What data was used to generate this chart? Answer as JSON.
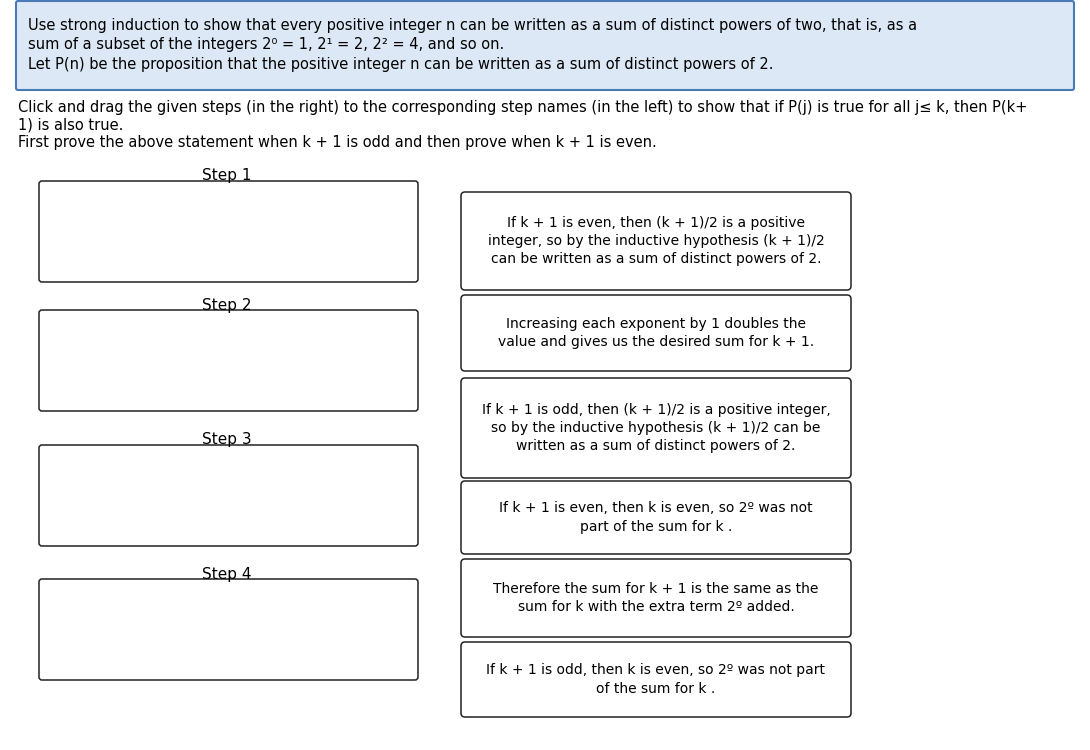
{
  "header_box_color": "#dce8f5",
  "header_border_color": "#4a7ab5",
  "header_text_line1": "Use strong induction to show that every positive integer n can be written as a sum of distinct powers of two, that is, as a",
  "header_text_line2": "sum of a subset of the integers 2⁰ = 1, 2¹ = 2, 2² = 4, and so on.",
  "header_text_line3": "Let P(n) be the proposition that the positive integer n can be written as a sum of distinct powers of 2.",
  "instruction_line1": "Click and drag the given steps (in the right) to the corresponding step names (in the left) to show that if P(j) is true for all j≤ k, then P(k+",
  "instruction_line2": "1) is also true.",
  "instruction_line3": "First prove the above statement when k + 1 is odd and then prove when k + 1 is even.",
  "step_labels": [
    "Step 1",
    "Step 2",
    "Step 3",
    "Step 4"
  ],
  "right_boxes": [
    "If k + 1 is even, then (k + 1)/2 is a positive\ninteger, so by the inductive hypothesis (k + 1)/2\ncan be written as a sum of distinct powers of 2.",
    "Increasing each exponent by 1 doubles the\nvalue and gives us the desired sum for k + 1.",
    "If k + 1 is odd, then (k + 1)/2 is a positive integer,\nso by the inductive hypothesis (k + 1)/2 can be\nwritten as a sum of distinct powers of 2.",
    "If k + 1 is even, then k is even, so 2º was not\npart of the sum for k .",
    "Therefore the sum for k + 1 is the same as the\nsum for k with the extra term 2º added.",
    "If k + 1 is odd, then k is even, so 2º was not part\nof the sum for k ."
  ],
  "bg_color": "#ffffff",
  "box_border_color": "#222222",
  "text_color": "#000000",
  "font_size_header": 10.5,
  "font_size_body": 10.5,
  "font_size_step": 11,
  "font_size_right": 10.0
}
